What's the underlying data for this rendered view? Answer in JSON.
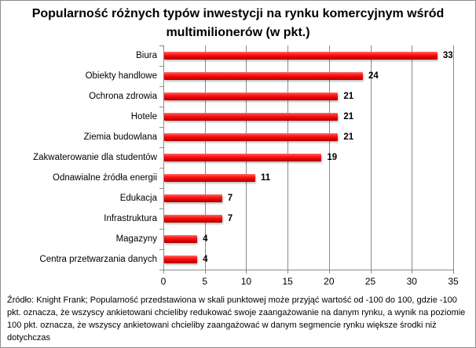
{
  "chart_data": {
    "type": "bar",
    "orientation": "horizontal",
    "title": "Popularność różnych typów inwestycji na rynku komercyjnym wśród multimilionerów (w pkt.)",
    "title_lines": [
      "Popularność różnych typów inwestycji na rynku komercyjnym wśród",
      "multimilionerów (w pkt.)"
    ],
    "categories": [
      "Biura",
      "Obiekty handlowe",
      "Ochrona zdrowia",
      "Hotele",
      "Ziemia budowlana",
      "Zakwaterowanie dla studentów",
      "Odnawialne źródła energii",
      "Edukacja",
      "Infrastruktura",
      "Magazyny",
      "Centra przetwarzania danych"
    ],
    "values": [
      33,
      24,
      21,
      21,
      21,
      19,
      11,
      7,
      7,
      4,
      4
    ],
    "xlabel": "",
    "ylabel": "",
    "xlim": [
      0,
      35
    ],
    "x_ticks": [
      "0",
      "5",
      "10",
      "15",
      "20",
      "25",
      "30",
      "35"
    ],
    "grid": "vertical major gridlines",
    "legend": "none",
    "data_labels": true,
    "bar_color": "#ff0000"
  },
  "source_note": "Źródło: Knight Frank; Popularność przedstawiona w skali punktowej może przyjąć wartość od -100 do 100, gdzie -100 pkt. oznacza, że wszyscy ankietowani chcieliby redukować swoje zaangażowanie na danym rynku, a wynik na poziomie 100 pkt. oznacza, że wszyscy ankietowani chcieliby zaangażować w danym segmencie rynku większe środki niż dotychczas"
}
